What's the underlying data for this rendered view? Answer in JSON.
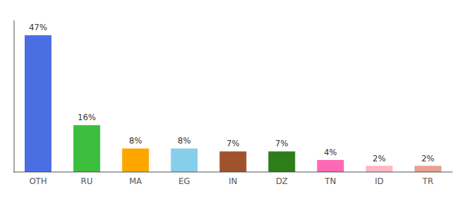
{
  "chart_data": {
    "type": "bar",
    "categories": [
      "OTH",
      "RU",
      "MA",
      "EG",
      "IN",
      "DZ",
      "TN",
      "ID",
      "TR"
    ],
    "values": [
      47,
      16,
      8,
      8,
      7,
      7,
      4,
      2,
      2
    ],
    "value_labels": [
      "47%",
      "16%",
      "8%",
      "8%",
      "7%",
      "7%",
      "4%",
      "2%",
      "2%"
    ],
    "colors": [
      "#4A6FE3",
      "#3DBF3D",
      "#FFA500",
      "#87CEEB",
      "#A0522D",
      "#2D7D1A",
      "#FF69B4",
      "#FFB6C1",
      "#E8A090"
    ],
    "ylim": [
      0,
      52
    ],
    "data_labels": true,
    "tick_labels": "x",
    "grid": false
  }
}
